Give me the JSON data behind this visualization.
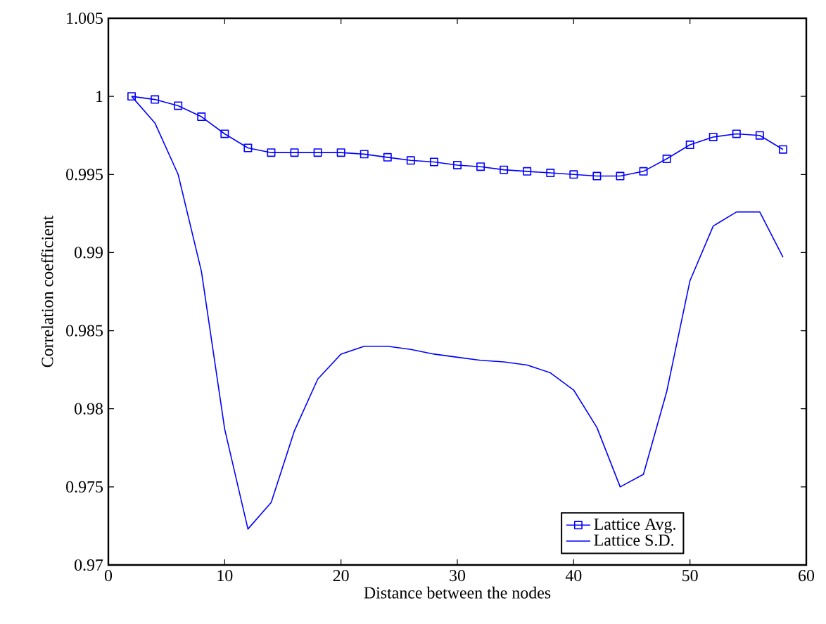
{
  "chart_data": {
    "type": "line",
    "xlabel": "Distance between the nodes",
    "ylabel": "Correlation coefficient",
    "x": [
      2,
      4,
      6,
      8,
      10,
      12,
      14,
      16,
      18,
      20,
      22,
      24,
      26,
      28,
      30,
      32,
      34,
      36,
      38,
      40,
      42,
      44,
      46,
      48,
      50,
      52,
      54,
      56,
      58
    ],
    "series": [
      {
        "name": "Lattice Avg.",
        "color": "#0000ff",
        "marker": "square",
        "values": [
          1.0,
          0.9998,
          0.9994,
          0.9987,
          0.9976,
          0.9967,
          0.9964,
          0.9964,
          0.9964,
          0.9964,
          0.9963,
          0.9961,
          0.9959,
          0.9958,
          0.9956,
          0.9955,
          0.9953,
          0.9952,
          0.9951,
          0.995,
          0.9949,
          0.9949,
          0.9952,
          0.996,
          0.9969,
          0.9974,
          0.9976,
          0.9975,
          0.9966
        ]
      },
      {
        "name": "Lattice S.D.",
        "color": "#0000ff",
        "marker": "none",
        "values": [
          1.0,
          0.9983,
          0.995,
          0.9888,
          0.9787,
          0.9723,
          0.974,
          0.9786,
          0.9819,
          0.9835,
          0.984,
          0.984,
          0.9838,
          0.9835,
          0.9833,
          0.9831,
          0.983,
          0.9828,
          0.9823,
          0.9812,
          0.9788,
          0.975,
          0.9758,
          0.9811,
          0.9882,
          0.9917,
          0.9926,
          0.9926,
          0.9897
        ]
      }
    ],
    "xlim": [
      0,
      60
    ],
    "xticks": [
      0,
      10,
      20,
      30,
      40,
      50,
      60
    ],
    "ylim": [
      0.97,
      1.005
    ],
    "yticks": [
      0.97,
      0.975,
      0.98,
      0.985,
      0.99,
      0.995,
      1,
      1.005
    ],
    "grid": false,
    "legend": "bottom right",
    "line_style": "solid"
  }
}
